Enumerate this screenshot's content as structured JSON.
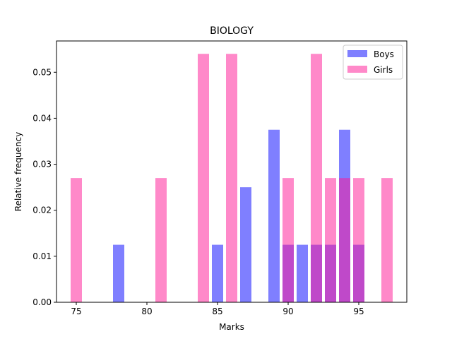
{
  "chart_data": {
    "type": "bar",
    "title": "BIOLOGY",
    "xlabel": "Marks",
    "ylabel": "Relative frequency",
    "xlim": [
      73.6,
      98.4
    ],
    "ylim": [
      0,
      0.0568
    ],
    "xticks": [
      75,
      80,
      85,
      90,
      95
    ],
    "yticks": [
      0.0,
      0.01,
      0.02,
      0.03,
      0.04,
      0.05
    ],
    "ytick_labels": [
      "0.00",
      "0.01",
      "0.02",
      "0.03",
      "0.04",
      "0.05"
    ],
    "bar_width": 0.8,
    "legend_position": "top-right",
    "grid": false,
    "series": [
      {
        "name": "Boys",
        "color": "#0000ff",
        "opacity": 0.5,
        "x": [
          78,
          85,
          87,
          89,
          90,
          91,
          92,
          93,
          94,
          95
        ],
        "values": [
          0.0125,
          0.0125,
          0.025,
          0.0375,
          0.0125,
          0.0125,
          0.0125,
          0.0125,
          0.0375,
          0.0125
        ]
      },
      {
        "name": "Girls",
        "color": "#ff1493",
        "opacity": 0.5,
        "x": [
          75,
          81,
          84,
          86,
          90,
          92,
          93,
          94,
          95,
          97
        ],
        "values": [
          0.027,
          0.027,
          0.054,
          0.054,
          0.027,
          0.054,
          0.027,
          0.027,
          0.027,
          0.027
        ]
      }
    ]
  }
}
